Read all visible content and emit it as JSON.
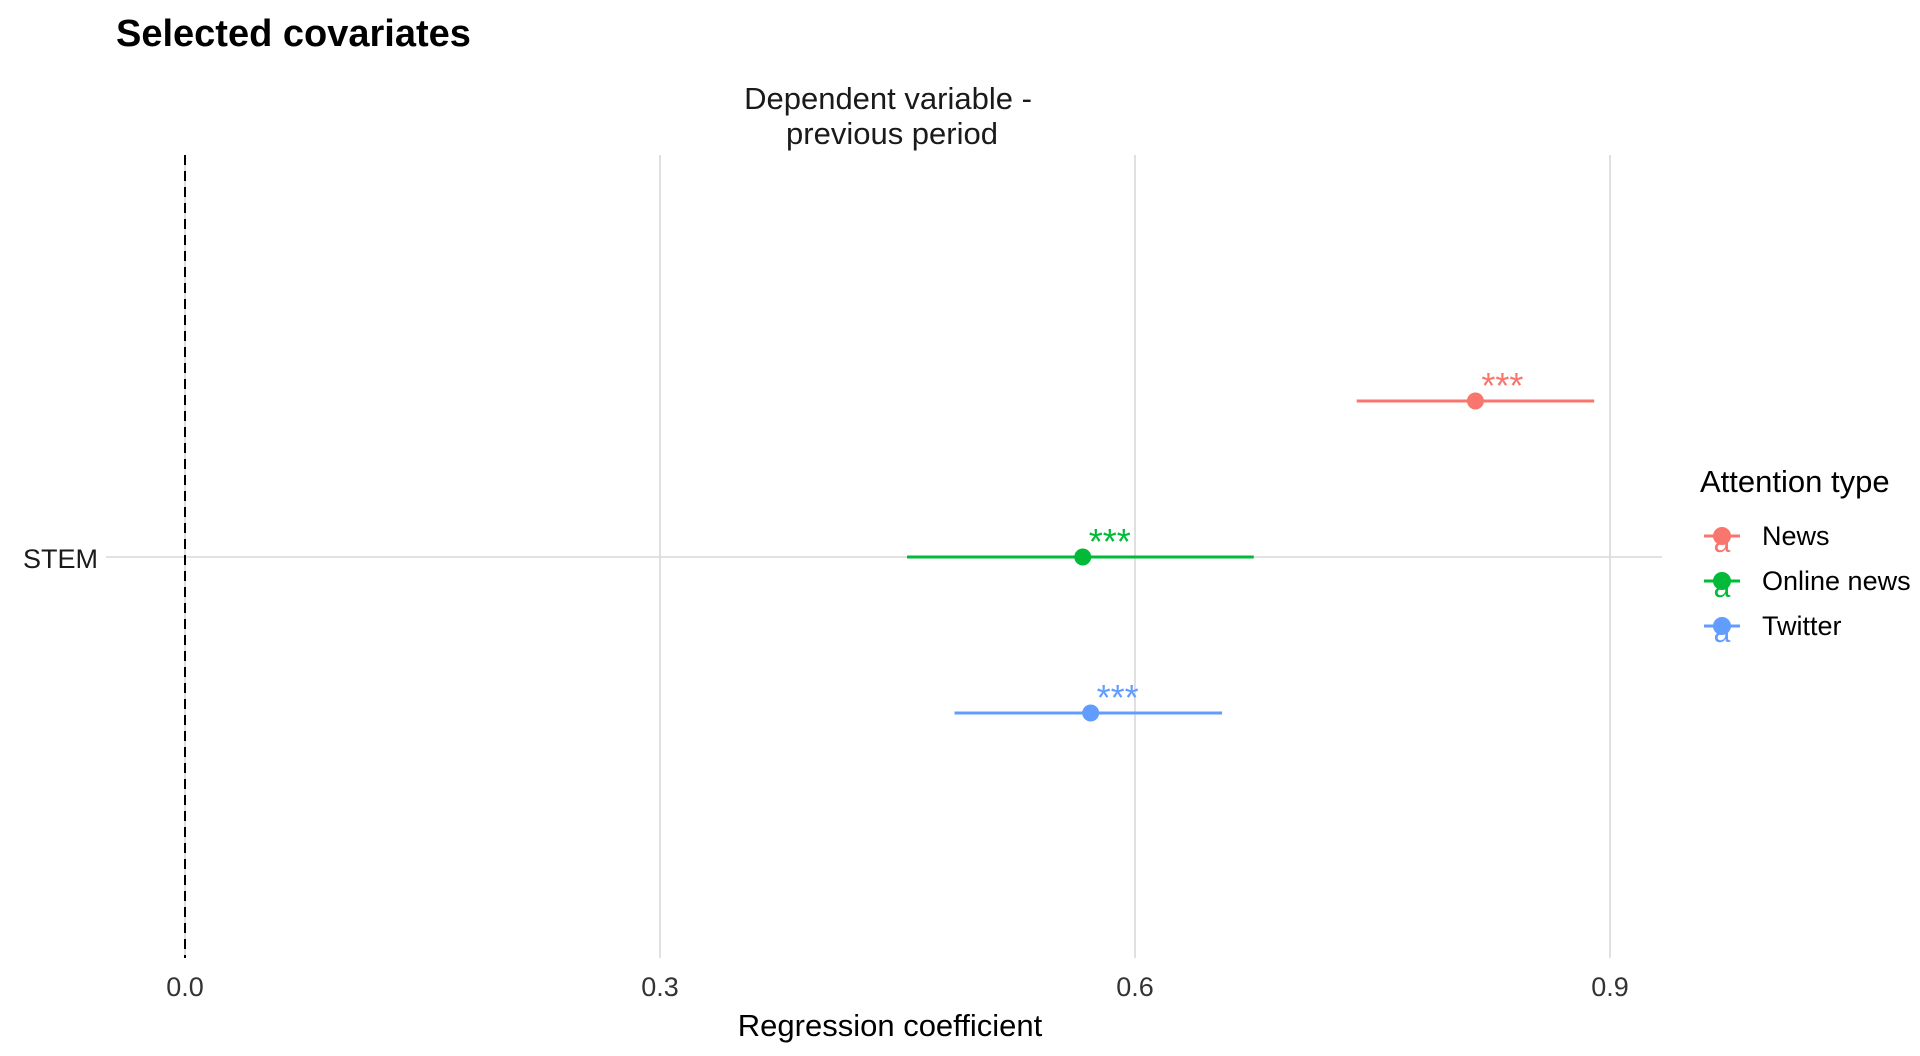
{
  "chart_data": {
    "type": "scatter",
    "subtype": "coefficient-plot",
    "title": "Selected covariates",
    "facet_title": [
      "Dependent variable -",
      "previous period"
    ],
    "xlabel": "Regression coefficient",
    "ylabel": "",
    "xlim": [
      -0.05,
      0.955
    ],
    "x_ticks": [
      0.0,
      0.3,
      0.6,
      0.9
    ],
    "x_tick_labels": [
      "0.0",
      "0.3",
      "0.6",
      "0.9"
    ],
    "categories": [
      "STEM"
    ],
    "reference_line": {
      "x": 0,
      "style": "dashed"
    },
    "grid": true,
    "legend": {
      "title": "Attention type",
      "position": "right"
    },
    "series": [
      {
        "name": "News",
        "color": "#F8766D",
        "category": "STEM",
        "estimate": 0.815,
        "ci_low": 0.74,
        "ci_high": 0.89,
        "significance": "***"
      },
      {
        "name": "Online news",
        "color": "#00BA38",
        "category": "STEM",
        "estimate": 0.567,
        "ci_low": 0.456,
        "ci_high": 0.675,
        "significance": "***"
      },
      {
        "name": "Twitter",
        "color": "#619CFF",
        "category": "STEM",
        "estimate": 0.572,
        "ci_low": 0.486,
        "ci_high": 0.655,
        "significance": "***"
      }
    ]
  }
}
